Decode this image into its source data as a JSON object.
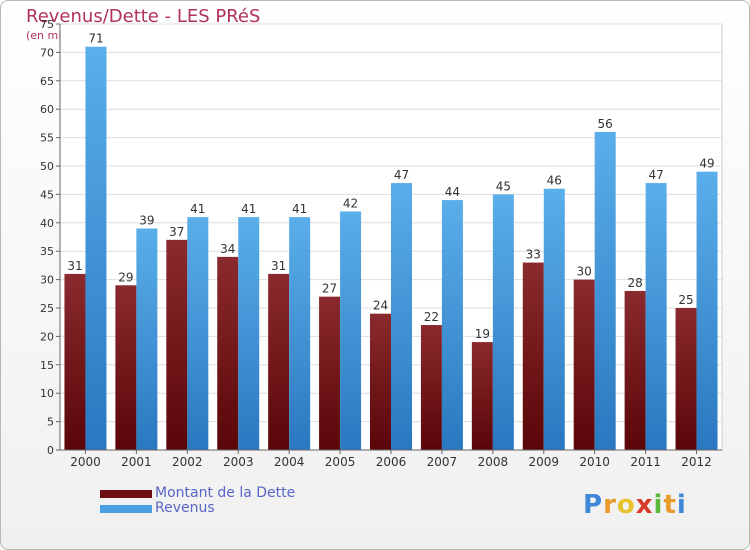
{
  "page": {
    "title": "Revenus/Dette - LES PRéS",
    "subtitle": "(en milliers d'€)"
  },
  "legend": {
    "items": [
      {
        "label": "Montant de la Dette",
        "color": "#6b0f12"
      },
      {
        "label": "Revenus",
        "color": "#4aa0e4"
      }
    ]
  },
  "logo": {
    "letters": [
      "P",
      "r",
      "o",
      "x",
      "i",
      "t",
      "i"
    ],
    "colors": [
      "#3f88d8",
      "#e89a2a",
      "#e8c22a",
      "#d83a2a",
      "#5cb83a",
      "#e89a2a",
      "#3f88d8"
    ]
  },
  "chart_data": {
    "type": "bar",
    "title": "Revenus/Dette - LES PRéS",
    "subtitle": "(en milliers d'€)",
    "xlabel": "",
    "ylabel": "(en milliers d'€)",
    "ylim": [
      0,
      75
    ],
    "yticks": [
      0,
      5,
      10,
      15,
      20,
      25,
      30,
      35,
      40,
      45,
      50,
      55,
      60,
      65,
      70,
      75
    ],
    "grid": true,
    "legend_position": "bottom-left",
    "categories": [
      "2000",
      "2001",
      "2002",
      "2003",
      "2004",
      "2005",
      "2006",
      "2007",
      "2008",
      "2009",
      "2010",
      "2011",
      "2012"
    ],
    "series": [
      {
        "name": "Montant de la Dette",
        "color": "#6b0f12",
        "values": [
          31,
          29,
          37,
          34,
          31,
          27,
          24,
          22,
          19,
          33,
          30,
          28,
          25
        ]
      },
      {
        "name": "Revenus",
        "color": "#4aa0e4",
        "values": [
          71,
          39,
          41,
          41,
          41,
          42,
          47,
          44,
          45,
          46,
          56,
          47,
          49
        ]
      }
    ]
  }
}
